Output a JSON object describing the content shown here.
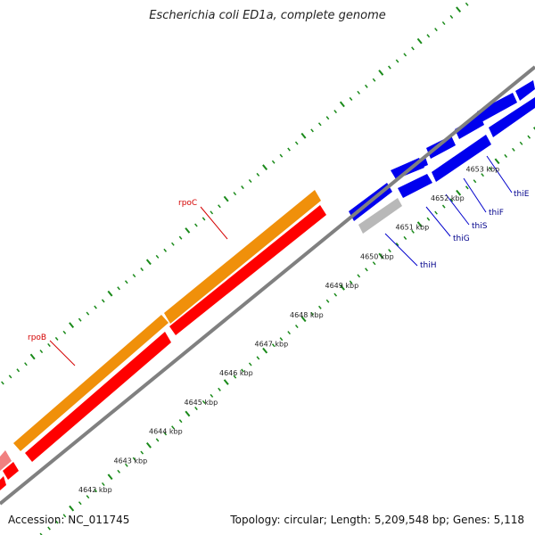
{
  "title": "Escherichia coli ED1a, complete genome",
  "footer": {
    "accession": "Accession: NC_011745",
    "topology": "Topology: circular; Length: 5,209,548 bp; Genes: 5,118"
  },
  "tick_labels": [
    {
      "kb": 4642,
      "label": "4642 kbp"
    },
    {
      "kb": 4643,
      "label": "4643 kbp"
    },
    {
      "kb": 4644,
      "label": "4644 kbp"
    },
    {
      "kb": 4645,
      "label": "4645 kbp"
    },
    {
      "kb": 4646,
      "label": "4646 kbp"
    },
    {
      "kb": 4647,
      "label": "4647 kbp"
    },
    {
      "kb": 4648,
      "label": "4648 kbp"
    },
    {
      "kb": 4649,
      "label": "4649 kbp"
    },
    {
      "kb": 4650,
      "label": "4650 kbp"
    },
    {
      "kb": 4651,
      "label": "4651 kbp"
    },
    {
      "kb": 4652,
      "label": "4652 kbp"
    },
    {
      "kb": 4653,
      "label": "4653 kbp"
    }
  ],
  "genes": [
    {
      "name": "rpoB",
      "color": "#d40000"
    },
    {
      "name": "rpoC",
      "color": "#d40000"
    },
    {
      "name": "thiH",
      "color": "#00008b"
    },
    {
      "name": "thiG",
      "color": "#00008b"
    },
    {
      "name": "thiS",
      "color": "#00008b"
    },
    {
      "name": "thiF",
      "color": "#00008b"
    },
    {
      "name": "thiE",
      "color": "#00008b"
    }
  ],
  "colors": {
    "backbone": "#808080",
    "rpoC_track": "#f0900a",
    "rpoB_track": "#ff0000",
    "thi_genes": "#0000ee",
    "pseudo_gene": "#b8b8b8",
    "ticks": "#1a8a1a"
  }
}
